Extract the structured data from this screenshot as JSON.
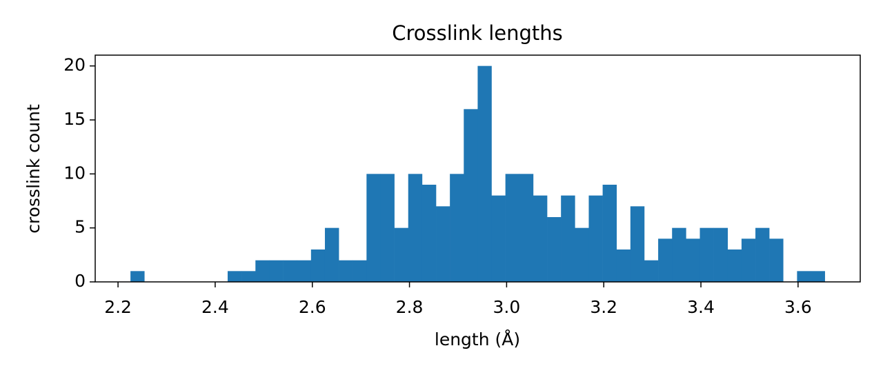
{
  "chart_data": {
    "type": "histogram",
    "title": "Crosslink lengths",
    "x_label": "length (Å)",
    "y_label": "crosslink count",
    "color": "#1f77b4",
    "bins": [
      2.2256,
      2.2542,
      2.2828,
      2.3114,
      2.34,
      2.3686,
      2.3971,
      2.4257,
      2.4543,
      2.4829,
      2.5115,
      2.5401,
      2.5687,
      2.5973,
      2.6259,
      2.6545,
      2.683,
      2.7116,
      2.7402,
      2.7688,
      2.7974,
      2.826,
      2.8546,
      2.8832,
      2.9118,
      2.9404,
      2.9689,
      2.9975,
      3.0261,
      3.0547,
      3.0833,
      3.1119,
      3.1405,
      3.1691,
      3.1977,
      3.2263,
      3.2548,
      3.2834,
      3.312,
      3.3406,
      3.3692,
      3.3978,
      3.4264,
      3.455,
      3.4836,
      3.5122,
      3.5407,
      3.5693,
      3.5979,
      3.6265,
      3.6551
    ],
    "values": [
      1,
      0,
      0,
      0,
      0,
      0,
      0,
      1,
      1,
      2,
      2,
      2,
      2,
      3,
      5,
      2,
      2,
      10,
      10,
      5,
      10,
      9,
      7,
      10,
      16,
      20,
      8,
      10,
      10,
      8,
      6,
      8,
      5,
      8,
      9,
      3,
      7,
      2,
      4,
      5,
      4,
      5,
      5,
      3,
      4,
      5,
      4,
      0,
      1,
      1
    ],
    "xlim": [
      2.153,
      3.728
    ],
    "ylim": [
      0,
      21
    ],
    "xticks": [
      2.2,
      2.4,
      2.6,
      2.8,
      {
        "value": 3,
        "label": "3.0"
      },
      3.2,
      3.4,
      3.6
    ],
    "yticks": [
      0,
      5,
      10,
      15,
      20
    ]
  }
}
